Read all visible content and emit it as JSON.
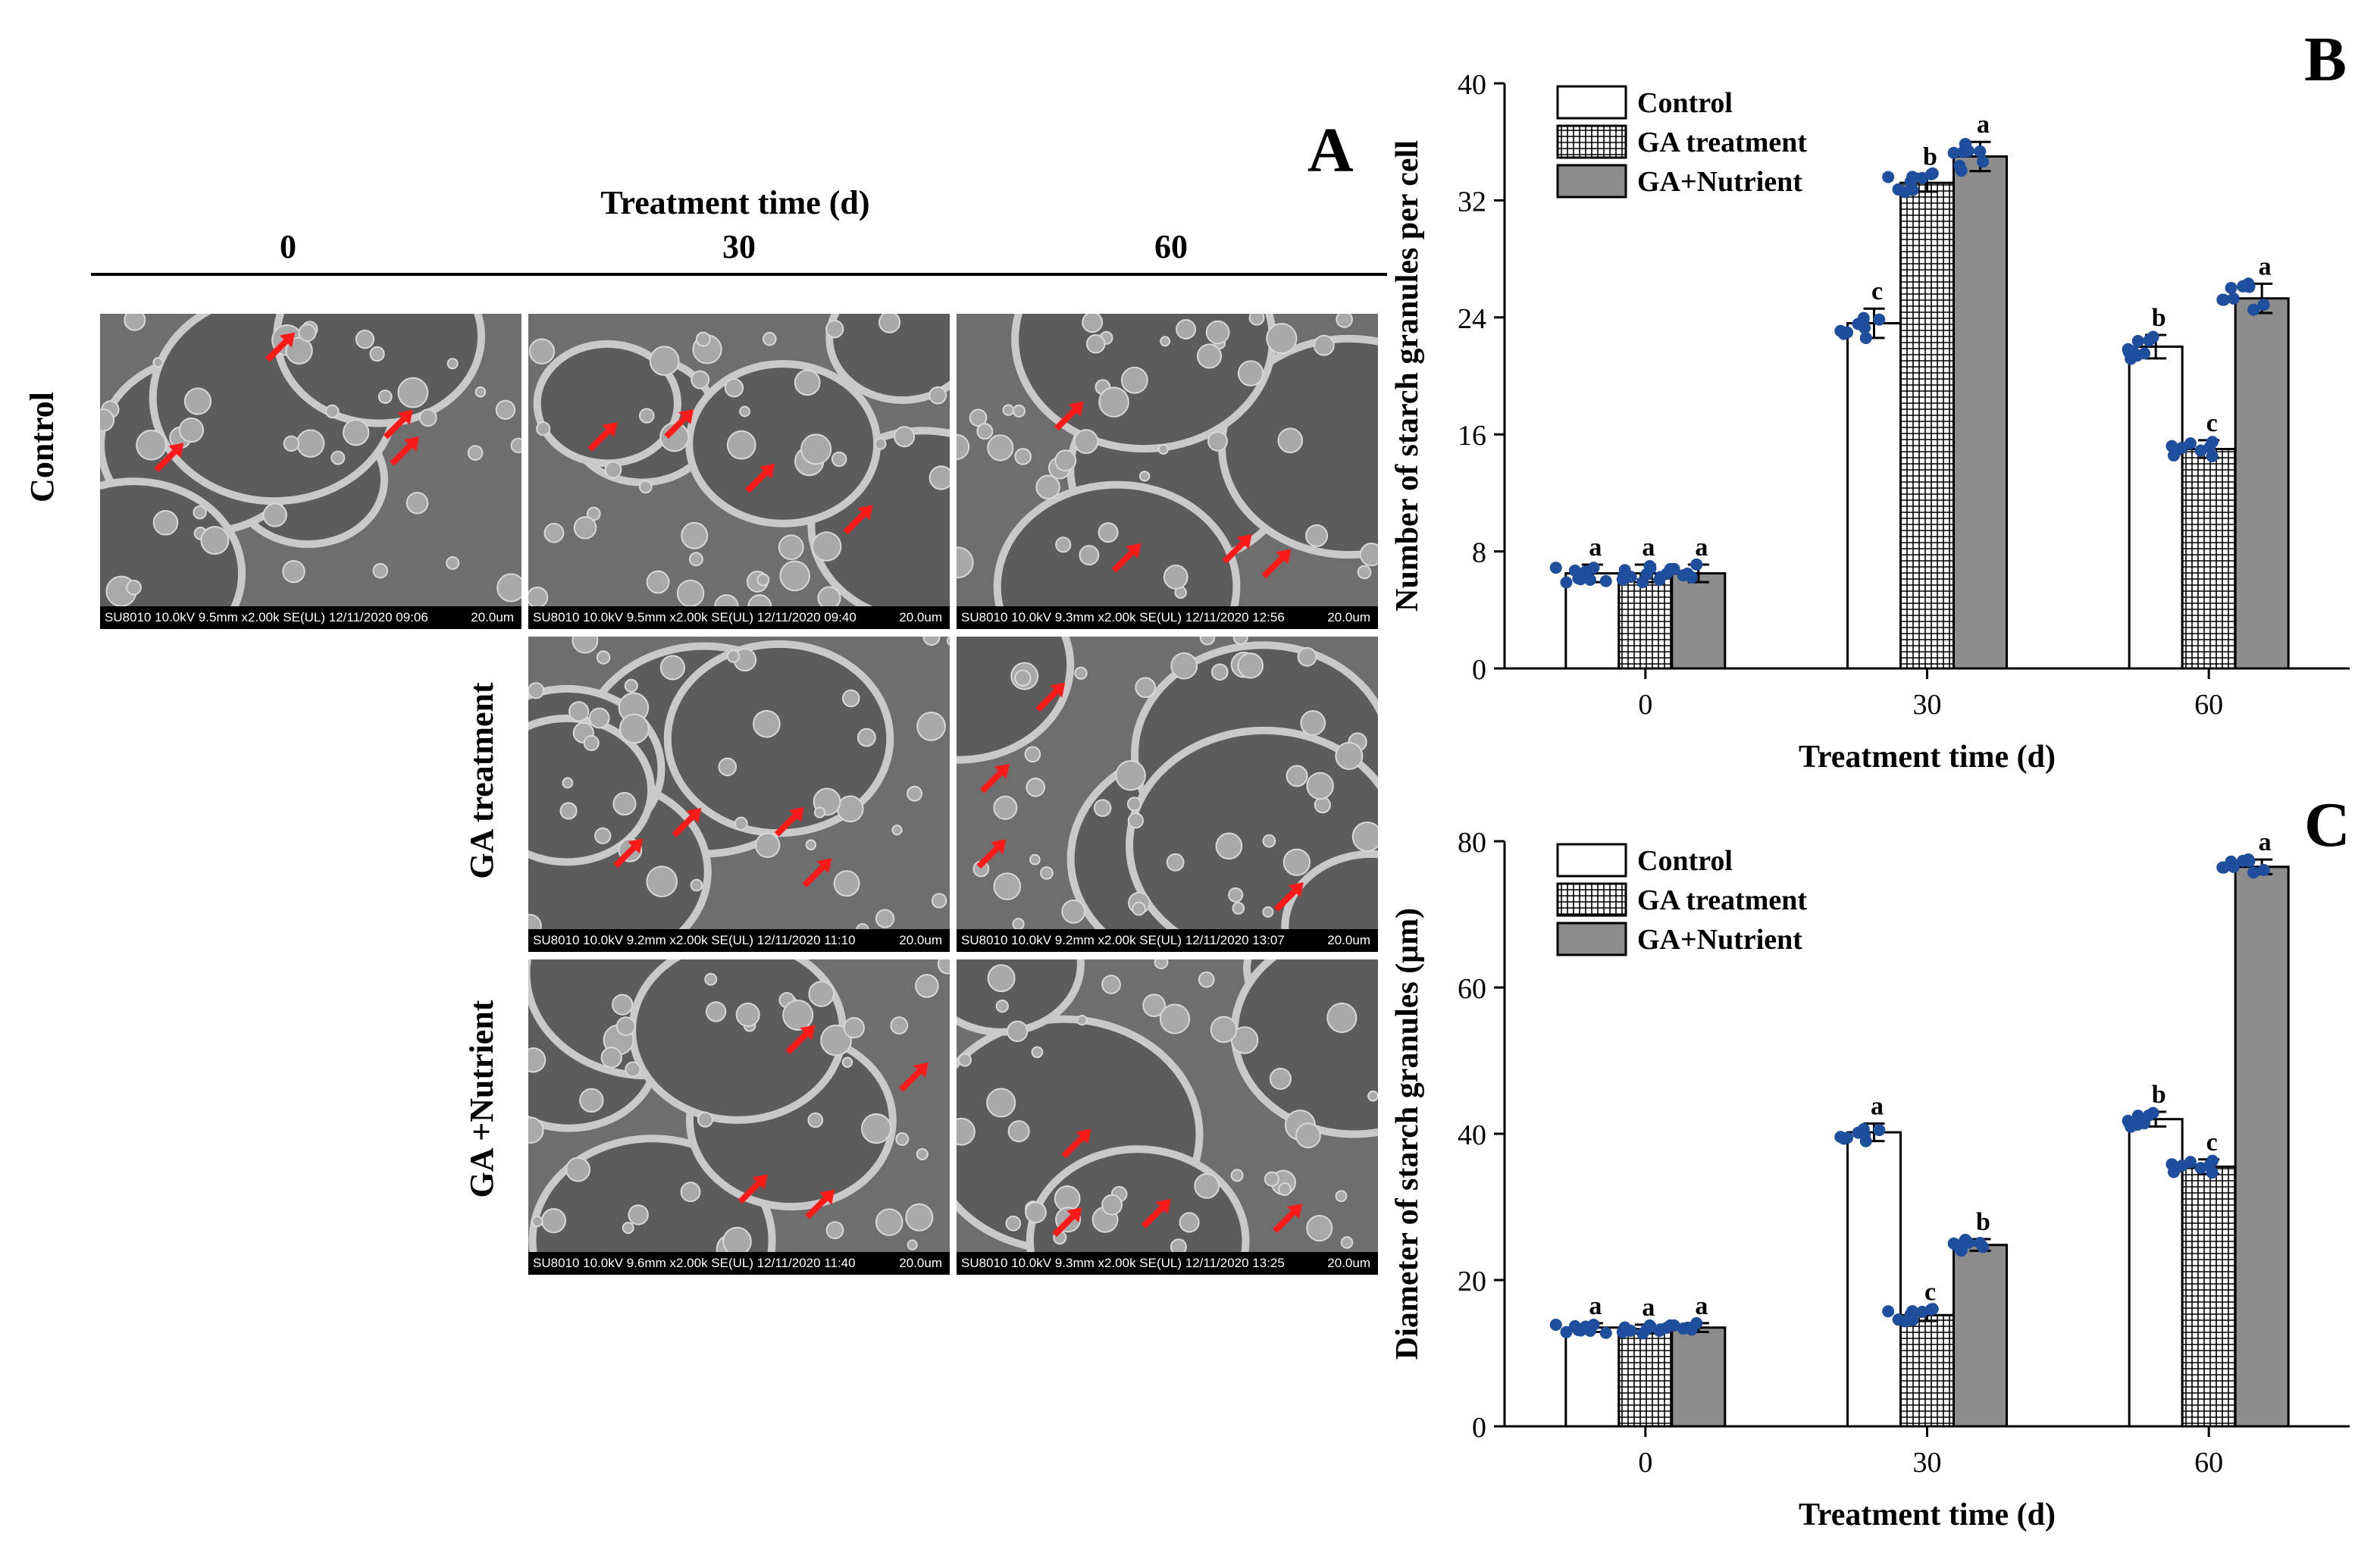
{
  "panel_a": {
    "label": "A",
    "header": "Treatment time (d)",
    "columns": [
      "0",
      "30",
      "60"
    ],
    "rows": [
      "Control",
      "GA treatment",
      "GA +Nutrient"
    ],
    "images": [
      {
        "meta": "SU8010 10.0kV 9.5mm x2.00k SE(UL) 12/11/2020 09:06",
        "scale": "20.0um"
      },
      {
        "meta": "SU8010 10.0kV 9.5mm x2.00k SE(UL) 12/11/2020 09:40",
        "scale": "20.0um"
      },
      {
        "meta": "SU8010 10.0kV 9.3mm x2.00k SE(UL) 12/11/2020 12:56",
        "scale": "20.0um"
      },
      {
        "meta": "SU8010 10.0kV 9.2mm x2.00k SE(UL) 12/11/2020 11:10",
        "scale": "20.0um"
      },
      {
        "meta": "SU8010 10.0kV 9.2mm x2.00k SE(UL) 12/11/2020 13:07",
        "scale": "20.0um"
      },
      {
        "meta": "SU8010 10.0kV 9.6mm x2.00k SE(UL) 12/11/2020 11:40",
        "scale": "20.0um"
      },
      {
        "meta": "SU8010 10.0kV 9.3mm x2.00k SE(UL) 12/11/2020 13:25",
        "scale": "20.0um"
      }
    ]
  },
  "chart_data": [
    {
      "panel": "B",
      "type": "bar",
      "xlabel": "Treatment time (d)",
      "ylabel": "Number of starch granules per cell",
      "categories": [
        "0",
        "30",
        "60"
      ],
      "ylim": [
        0,
        40
      ],
      "yticks": [
        0,
        8,
        16,
        24,
        32,
        40
      ],
      "legend_position": "top-left",
      "series": [
        {
          "name": "Control",
          "values": [
            6.5,
            23.6,
            22.0
          ],
          "errors": [
            0.6,
            1.0,
            0.8
          ],
          "letters": [
            "a",
            "c",
            "b"
          ]
        },
        {
          "name": "GA treatment",
          "values": [
            6.5,
            33.2,
            15.0
          ],
          "errors": [
            0.6,
            0.6,
            0.6
          ],
          "letters": [
            "a",
            "b",
            "c"
          ]
        },
        {
          "name": "GA+Nutrient",
          "values": [
            6.5,
            35.0,
            25.3
          ],
          "errors": [
            0.6,
            1.0,
            1.0
          ],
          "letters": [
            "a",
            "a",
            "a"
          ]
        }
      ]
    },
    {
      "panel": "C",
      "type": "bar",
      "xlabel": "Treatment time (d)",
      "ylabel": "Diameter of starch granules (μm)",
      "categories": [
        "0",
        "30",
        "60"
      ],
      "ylim": [
        0,
        80
      ],
      "yticks": [
        0,
        20,
        40,
        60,
        80
      ],
      "legend_position": "top-left",
      "series": [
        {
          "name": "Control",
          "values": [
            13.5,
            40.2,
            42.0
          ],
          "errors": [
            0.6,
            1.2,
            1.0
          ],
          "letters": [
            "a",
            "a",
            "b"
          ]
        },
        {
          "name": "GA treatment",
          "values": [
            13.3,
            15.2,
            35.5
          ],
          "errors": [
            0.6,
            0.8,
            1.0
          ],
          "letters": [
            "a",
            "c",
            "c"
          ]
        },
        {
          "name": "GA+Nutrient",
          "values": [
            13.5,
            24.8,
            76.5
          ],
          "errors": [
            0.6,
            0.8,
            1.0
          ],
          "letters": [
            "a",
            "b",
            "a"
          ]
        }
      ]
    }
  ]
}
